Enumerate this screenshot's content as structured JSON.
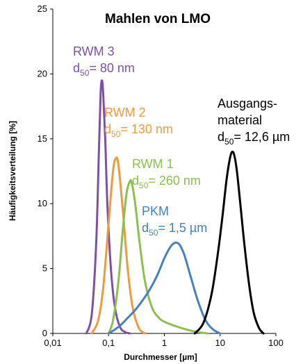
{
  "chart_data": {
    "type": "line",
    "title": "Mahlen von LMO",
    "xlabel": "Durchmesser [µm]",
    "ylabel": "Häufigkeitsverteilung [%]",
    "x_scale": "log",
    "xlim": [
      0.01,
      100
    ],
    "ylim": [
      0,
      25
    ],
    "x_ticks": [
      "0,01",
      "0,1",
      "1",
      "10",
      "100"
    ],
    "y_ticks": [
      "0",
      "5",
      "10",
      "15",
      "20",
      "25"
    ],
    "grid": false,
    "legend": "none",
    "series": [
      {
        "color": "#7f4fa8",
        "label_lines": [
          "RWM 3",
          "d",
          "50",
          "= 80 nm"
        ],
        "x": [
          0.04,
          0.05,
          0.06,
          0.067,
          0.072,
          0.076,
          0.08,
          0.087,
          0.095,
          0.11,
          0.13,
          0.16,
          0.2,
          0.24
        ],
        "y": [
          0,
          1.5,
          7.0,
          14.0,
          18.5,
          19.5,
          18.5,
          15.0,
          10.0,
          5.0,
          2.0,
          0.5,
          0.1,
          0
        ]
      },
      {
        "color": "#f2993b",
        "label_lines": [
          "RWM 2",
          "d",
          "50",
          "= 130 nm"
        ],
        "x": [
          0.05,
          0.065,
          0.08,
          0.1,
          0.12,
          0.135,
          0.15,
          0.18,
          0.22,
          0.27,
          0.35,
          0.45
        ],
        "y": [
          0,
          1.0,
          3.5,
          8.5,
          12.5,
          13.5,
          13.0,
          9.5,
          5.0,
          2.0,
          0.4,
          0
        ]
      },
      {
        "color": "#8cc04d",
        "label_lines": [
          "RWM 1",
          "d",
          "50",
          "= 260 nm"
        ],
        "x": [
          0.1,
          0.12,
          0.15,
          0.18,
          0.21,
          0.24,
          0.26,
          0.3,
          0.36,
          0.45,
          0.6,
          0.8,
          1.0,
          1.5,
          2.5,
          4.0,
          6.0
        ],
        "y": [
          0,
          1.0,
          4.0,
          8.0,
          10.8,
          11.7,
          11.6,
          10.0,
          7.0,
          4.0,
          2.0,
          1.2,
          0.9,
          0.6,
          0.3,
          0.1,
          0
        ]
      },
      {
        "color": "#4480c2",
        "label_lines": [
          "PKM",
          "d",
          "50",
          "= 1,5 µm"
        ],
        "x": [
          0.1,
          0.13,
          0.17,
          0.22,
          0.3,
          0.4,
          0.55,
          0.75,
          1.0,
          1.3,
          1.6,
          1.9,
          2.3,
          3.0,
          4.0,
          5.5,
          7.5,
          10.0
        ],
        "y": [
          0,
          0.3,
          0.7,
          1.2,
          1.8,
          2.5,
          3.4,
          4.5,
          5.8,
          6.7,
          7.0,
          6.8,
          6.0,
          4.3,
          2.5,
          1.0,
          0.3,
          0
        ]
      },
      {
        "color": "#000000",
        "label_lines": [
          "Ausgangs-",
          "material",
          "d",
          "50",
          "= 12,6 µm"
        ],
        "x": [
          3.5,
          5.0,
          7.0,
          9.0,
          11.0,
          13.0,
          15.0,
          16.5,
          18.0,
          20.0,
          23.0,
          27.0,
          33.0,
          40.0,
          50.0,
          60.0
        ],
        "y": [
          0,
          0.8,
          3.0,
          6.0,
          9.0,
          11.8,
          13.5,
          14.0,
          13.7,
          12.5,
          10.0,
          7.0,
          3.8,
          1.6,
          0.4,
          0
        ]
      }
    ]
  }
}
